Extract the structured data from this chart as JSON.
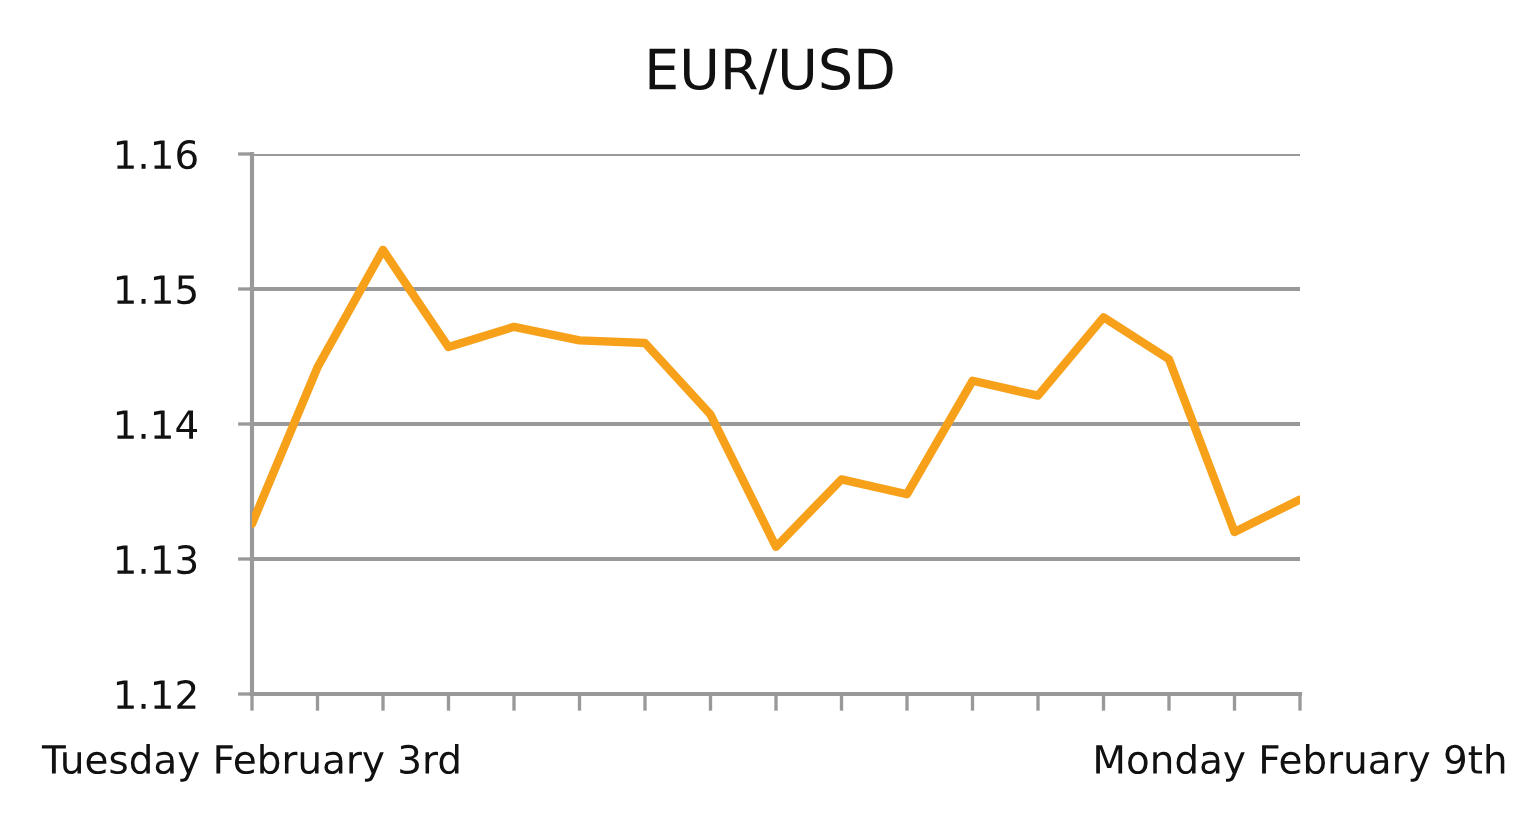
{
  "chart_data": {
    "type": "line",
    "title": "EUR/USD",
    "categories": [
      "Tuesday February 3rd",
      null,
      null,
      null,
      null,
      null,
      null,
      null,
      null,
      null,
      null,
      null,
      null,
      null,
      null,
      null,
      "Monday February 9th"
    ],
    "series": [
      {
        "color": "#f7a01a",
        "values": [
          1.1326,
          1.1442,
          1.1529,
          1.1457,
          1.1472,
          1.1462,
          1.146,
          1.1407,
          1.1309,
          1.1359,
          1.1348,
          1.1432,
          1.1421,
          1.1479,
          1.1448,
          1.132,
          1.1344
        ]
      }
    ],
    "ylim": [
      1.12,
      1.16
    ],
    "yticks": [
      1.12,
      1.13,
      1.14,
      1.15,
      1.16
    ],
    "grid": "y",
    "marker": "none",
    "line_style": "solid"
  }
}
